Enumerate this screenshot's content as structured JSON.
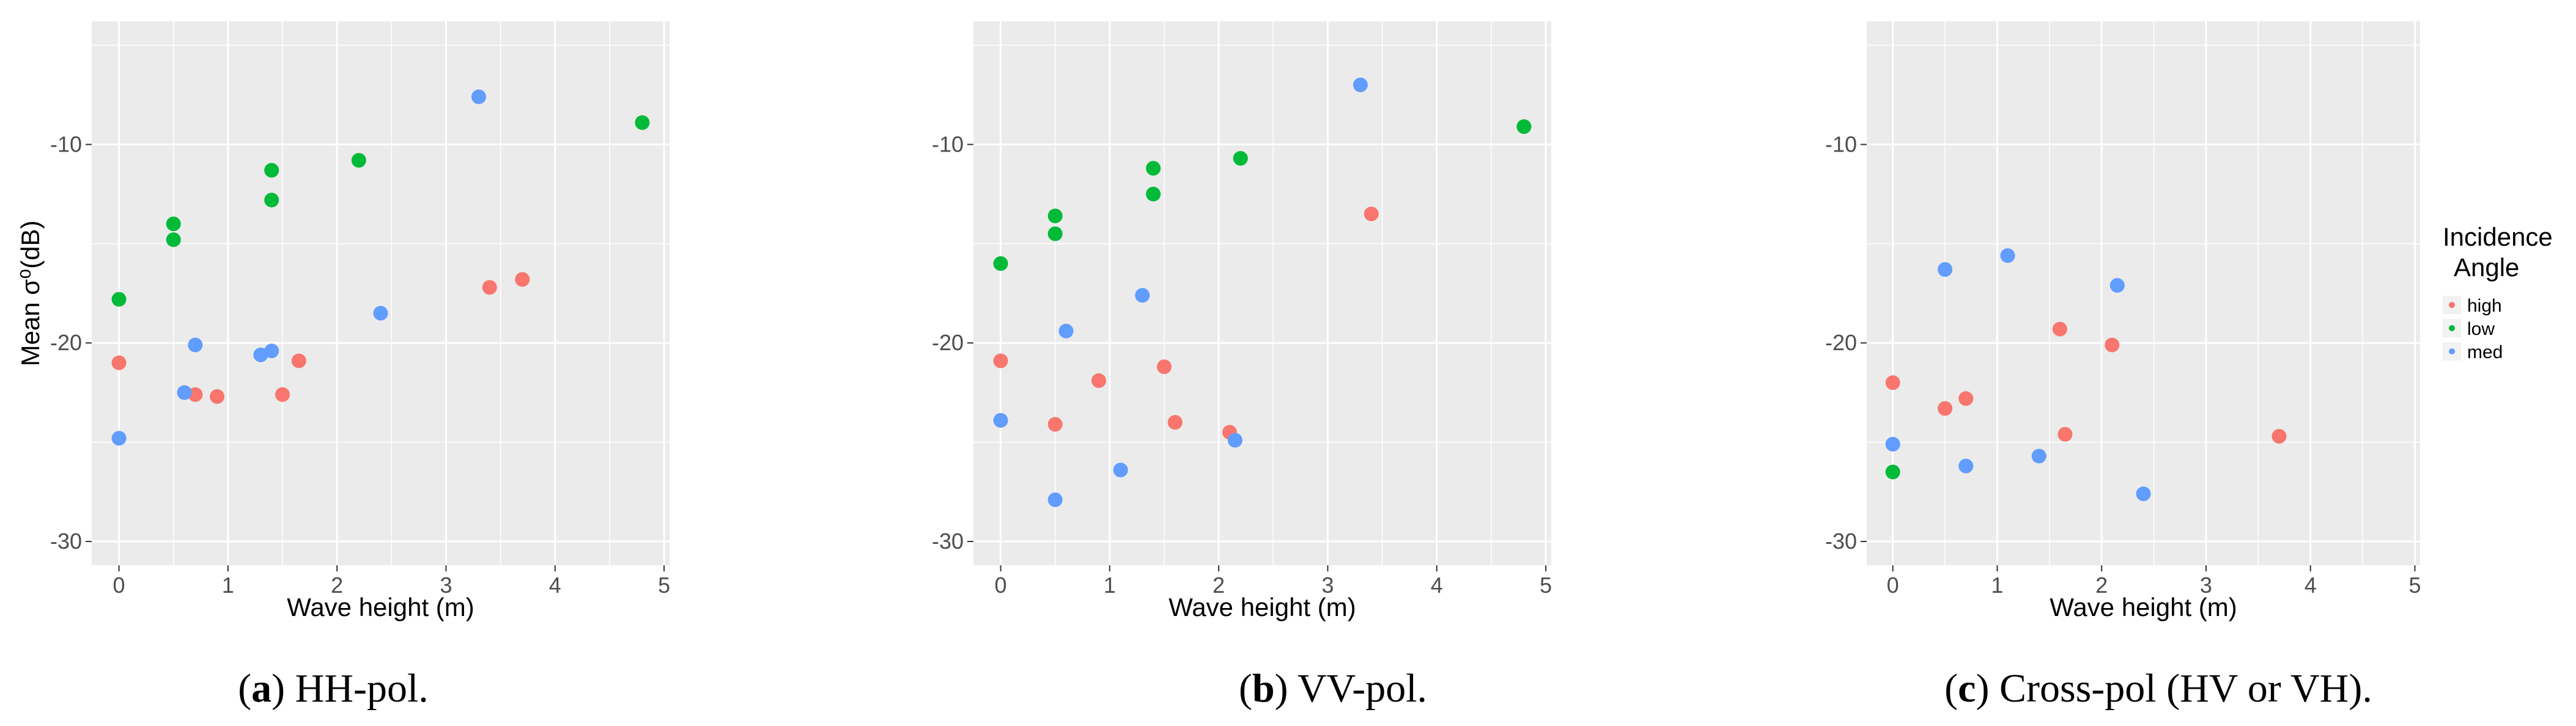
{
  "colors": {
    "high": "#F8766D",
    "low": "#00BA38",
    "med": "#619CFF",
    "panel_bg": "#EBEBEB",
    "grid": "#FFFFFF",
    "tick_text": "#4D4D4D"
  },
  "legend": {
    "title_line1": "Incidence",
    "title_line2": "Angle",
    "entries": [
      {
        "key": "high",
        "label": "high"
      },
      {
        "key": "low",
        "label": "low"
      },
      {
        "key": "med",
        "label": "med"
      }
    ]
  },
  "chart_data": [
    {
      "type": "scatter",
      "id": "hh",
      "caption_letter": "(a)",
      "caption_rest": " HH-pol.",
      "xlabel": "Wave height (m)",
      "ylabel": "Mean σ⁰(dB)",
      "xlim": [
        -0.25,
        5.05
      ],
      "ylim": [
        -31.2,
        -3.8
      ],
      "xticks": [
        0,
        1,
        2,
        3,
        4,
        5
      ],
      "yticks": [
        -30,
        -20,
        -10
      ],
      "points": [
        {
          "x": 0,
          "y": -17.8,
          "group": "low"
        },
        {
          "x": 0.5,
          "y": -14.0,
          "group": "low"
        },
        {
          "x": 0.5,
          "y": -14.8,
          "group": "low"
        },
        {
          "x": 1.4,
          "y": -11.3,
          "group": "low"
        },
        {
          "x": 1.4,
          "y": -12.8,
          "group": "low"
        },
        {
          "x": 2.2,
          "y": -10.8,
          "group": "low"
        },
        {
          "x": 4.8,
          "y": -8.9,
          "group": "low"
        },
        {
          "x": 0,
          "y": -21.0,
          "group": "high"
        },
        {
          "x": 0.7,
          "y": -22.6,
          "group": "high"
        },
        {
          "x": 0.9,
          "y": -22.7,
          "group": "high"
        },
        {
          "x": 1.5,
          "y": -22.6,
          "group": "high"
        },
        {
          "x": 1.65,
          "y": -20.9,
          "group": "high"
        },
        {
          "x": 3.4,
          "y": -17.2,
          "group": "high"
        },
        {
          "x": 3.7,
          "y": -16.8,
          "group": "high"
        },
        {
          "x": 0,
          "y": -24.8,
          "group": "med"
        },
        {
          "x": 0.6,
          "y": -22.5,
          "group": "med"
        },
        {
          "x": 0.7,
          "y": -20.1,
          "group": "med"
        },
        {
          "x": 1.3,
          "y": -20.6,
          "group": "med"
        },
        {
          "x": 1.4,
          "y": -20.4,
          "group": "med"
        },
        {
          "x": 2.4,
          "y": -18.5,
          "group": "med"
        },
        {
          "x": 3.3,
          "y": -7.6,
          "group": "med"
        }
      ]
    },
    {
      "type": "scatter",
      "id": "vv",
      "caption_letter": "(b)",
      "caption_rest": " VV-pol.",
      "xlabel": "Wave height (m)",
      "ylabel": "",
      "xlim": [
        -0.25,
        5.05
      ],
      "ylim": [
        -31.2,
        -3.8
      ],
      "xticks": [
        0,
        1,
        2,
        3,
        4,
        5
      ],
      "yticks": [
        -30,
        -20,
        -10
      ],
      "points": [
        {
          "x": 0,
          "y": -16.0,
          "group": "low"
        },
        {
          "x": 0.5,
          "y": -13.6,
          "group": "low"
        },
        {
          "x": 0.5,
          "y": -14.5,
          "group": "low"
        },
        {
          "x": 1.4,
          "y": -11.2,
          "group": "low"
        },
        {
          "x": 1.4,
          "y": -12.5,
          "group": "low"
        },
        {
          "x": 2.2,
          "y": -10.7,
          "group": "low"
        },
        {
          "x": 4.8,
          "y": -9.1,
          "group": "low"
        },
        {
          "x": 0,
          "y": -20.9,
          "group": "high"
        },
        {
          "x": 0.5,
          "y": -24.1,
          "group": "high"
        },
        {
          "x": 0.9,
          "y": -21.9,
          "group": "high"
        },
        {
          "x": 1.5,
          "y": -21.2,
          "group": "high"
        },
        {
          "x": 1.6,
          "y": -24.0,
          "group": "high"
        },
        {
          "x": 2.1,
          "y": -24.5,
          "group": "high"
        },
        {
          "x": 3.4,
          "y": -13.5,
          "group": "high"
        },
        {
          "x": 0,
          "y": -23.9,
          "group": "med"
        },
        {
          "x": 0.5,
          "y": -27.9,
          "group": "med"
        },
        {
          "x": 0.6,
          "y": -19.4,
          "group": "med"
        },
        {
          "x": 1.1,
          "y": -26.4,
          "group": "med"
        },
        {
          "x": 1.3,
          "y": -17.6,
          "group": "med"
        },
        {
          "x": 2.15,
          "y": -24.9,
          "group": "med"
        },
        {
          "x": 3.3,
          "y": -7.0,
          "group": "med"
        }
      ]
    },
    {
      "type": "scatter",
      "id": "cross",
      "caption_letter": "(c)",
      "caption_rest": " Cross-pol (HV or VH).",
      "xlabel": "Wave height (m)",
      "ylabel": "",
      "xlim": [
        -0.25,
        5.05
      ],
      "ylim": [
        -31.2,
        -3.8
      ],
      "xticks": [
        0,
        1,
        2,
        3,
        4,
        5
      ],
      "yticks": [
        -30,
        -20,
        -10
      ],
      "points": [
        {
          "x": 0,
          "y": -26.5,
          "group": "low"
        },
        {
          "x": 0,
          "y": -22.0,
          "group": "high"
        },
        {
          "x": 0.5,
          "y": -23.3,
          "group": "high"
        },
        {
          "x": 0.7,
          "y": -22.8,
          "group": "high"
        },
        {
          "x": 1.6,
          "y": -19.3,
          "group": "high"
        },
        {
          "x": 1.65,
          "y": -24.6,
          "group": "high"
        },
        {
          "x": 2.1,
          "y": -20.1,
          "group": "high"
        },
        {
          "x": 3.7,
          "y": -24.7,
          "group": "high"
        },
        {
          "x": 0,
          "y": -25.1,
          "group": "med"
        },
        {
          "x": 0.5,
          "y": -16.3,
          "group": "med"
        },
        {
          "x": 0.7,
          "y": -26.2,
          "group": "med"
        },
        {
          "x": 1.1,
          "y": -15.6,
          "group": "med"
        },
        {
          "x": 1.4,
          "y": -25.7,
          "group": "med"
        },
        {
          "x": 2.15,
          "y": -17.1,
          "group": "med"
        },
        {
          "x": 2.4,
          "y": -27.6,
          "group": "med"
        }
      ]
    }
  ]
}
